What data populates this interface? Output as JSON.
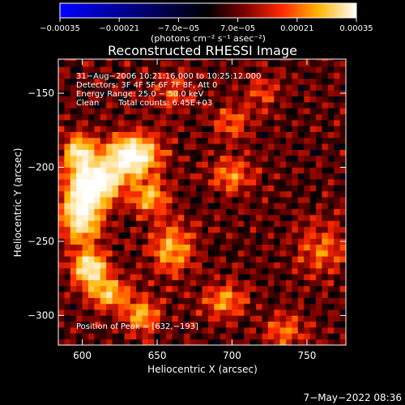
{
  "chart_data": {
    "type": "heatmap",
    "title": "Reconstructed RHESSI Image",
    "xlabel": "Heliocentric X (arcsec)",
    "ylabel": "Heliocentric Y (arcsec)",
    "xlim": [
      584,
      776
    ],
    "ylim": [
      -320,
      -127
    ],
    "x_ticks": [
      600,
      650,
      700,
      750
    ],
    "y_ticks": [
      -150,
      -200,
      -250,
      -300
    ],
    "x_tick_labels": [
      "600",
      "650",
      "700",
      "750"
    ],
    "y_tick_labels": [
      "−150",
      "−200",
      "−250",
      "−300"
    ],
    "colorbar": {
      "min": -0.00035,
      "max": 0.00035,
      "ticks": [
        -0.00035,
        -0.00021,
        -7e-05,
        7e-05,
        0.00021,
        0.00035
      ],
      "tick_labels": [
        "−0.00035",
        "−0.00021",
        "−7.0e−05",
        "7.0e−05",
        "0.00021",
        "0.00035"
      ],
      "units": "(photons cm⁻² s⁻¹ asec⁻²)"
    },
    "annotations": [
      "31−Aug−2006 10:21:16.000 to 10:25:12.000",
      "Detectors: 3F 4F 5F 6F 7F 8F, Att 0",
      "Energy Range: 25.0 − 50.0 keV",
      "Clean",
      "Total counts: 6.45E+03"
    ],
    "peak_label": "Position of Peak = [632,−193]",
    "peak": [
      632,
      -193
    ],
    "sources": [
      {
        "x": 633,
        "y": -192,
        "sx": 12,
        "sy": 9,
        "a": 1.0
      },
      {
        "x": 610,
        "y": -210,
        "sx": 11,
        "sy": 9,
        "a": 0.9
      },
      {
        "x": 600,
        "y": -230,
        "sx": 9,
        "sy": 14,
        "a": 0.85
      },
      {
        "x": 598,
        "y": -190,
        "sx": 7,
        "sy": 8,
        "a": 0.7
      },
      {
        "x": 605,
        "y": -268,
        "sx": 8,
        "sy": 8,
        "a": 0.75
      },
      {
        "x": 618,
        "y": -285,
        "sx": 9,
        "sy": 7,
        "a": 0.55
      },
      {
        "x": 645,
        "y": -220,
        "sx": 8,
        "sy": 8,
        "a": 0.5
      },
      {
        "x": 660,
        "y": -255,
        "sx": 10,
        "sy": 12,
        "a": 0.45
      },
      {
        "x": 640,
        "y": -300,
        "sx": 8,
        "sy": 8,
        "a": 0.45
      },
      {
        "x": 695,
        "y": -290,
        "sx": 10,
        "sy": 8,
        "a": 0.4
      },
      {
        "x": 700,
        "y": -205,
        "sx": 10,
        "sy": 8,
        "a": 0.35
      },
      {
        "x": 700,
        "y": -170,
        "sx": 8,
        "sy": 8,
        "a": 0.3
      },
      {
        "x": 760,
        "y": -255,
        "sx": 12,
        "sy": 12,
        "a": 0.3
      },
      {
        "x": 735,
        "y": -310,
        "sx": 10,
        "sy": 8,
        "a": 0.3
      },
      {
        "x": 720,
        "y": -150,
        "sx": 8,
        "sy": 8,
        "a": 0.25
      },
      {
        "x": 660,
        "y": -150,
        "sx": 9,
        "sy": 9,
        "a": 0.25
      }
    ]
  },
  "footer": {
    "date_stamp": "7−May−2022 08:36"
  }
}
